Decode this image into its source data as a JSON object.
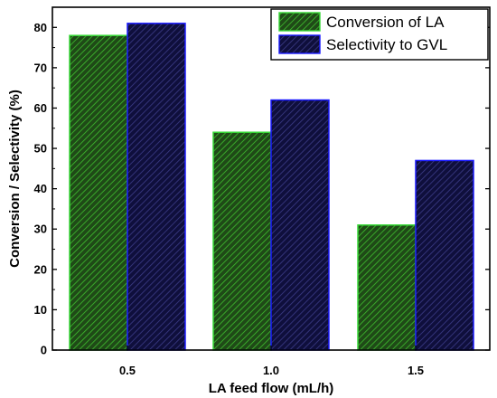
{
  "chart_data": {
    "type": "bar",
    "title": "",
    "xlabel": "LA feed flow (mL/h)",
    "ylabel": "Conversion / Selectivity (%)",
    "categories": [
      "0.5",
      "1.0",
      "1.5"
    ],
    "series": [
      {
        "name": "Conversion of LA",
        "values": [
          78,
          54,
          31
        ],
        "fill": "#1f4a17",
        "hatch": "#3fbf2f",
        "edge": "#38d938"
      },
      {
        "name": "Selectivity to GVL",
        "values": [
          81,
          62,
          47
        ],
        "fill": "#0f0f3c",
        "hatch": "#3c3c88",
        "edge": "#1a1aff"
      }
    ],
    "ylim": [
      0,
      85
    ],
    "yticks": [
      "0",
      "10",
      "20",
      "30",
      "40",
      "50",
      "60",
      "70",
      "80"
    ],
    "grid": false,
    "legend_position": "top-right",
    "bar_pattern": "diagonal-hatch"
  }
}
